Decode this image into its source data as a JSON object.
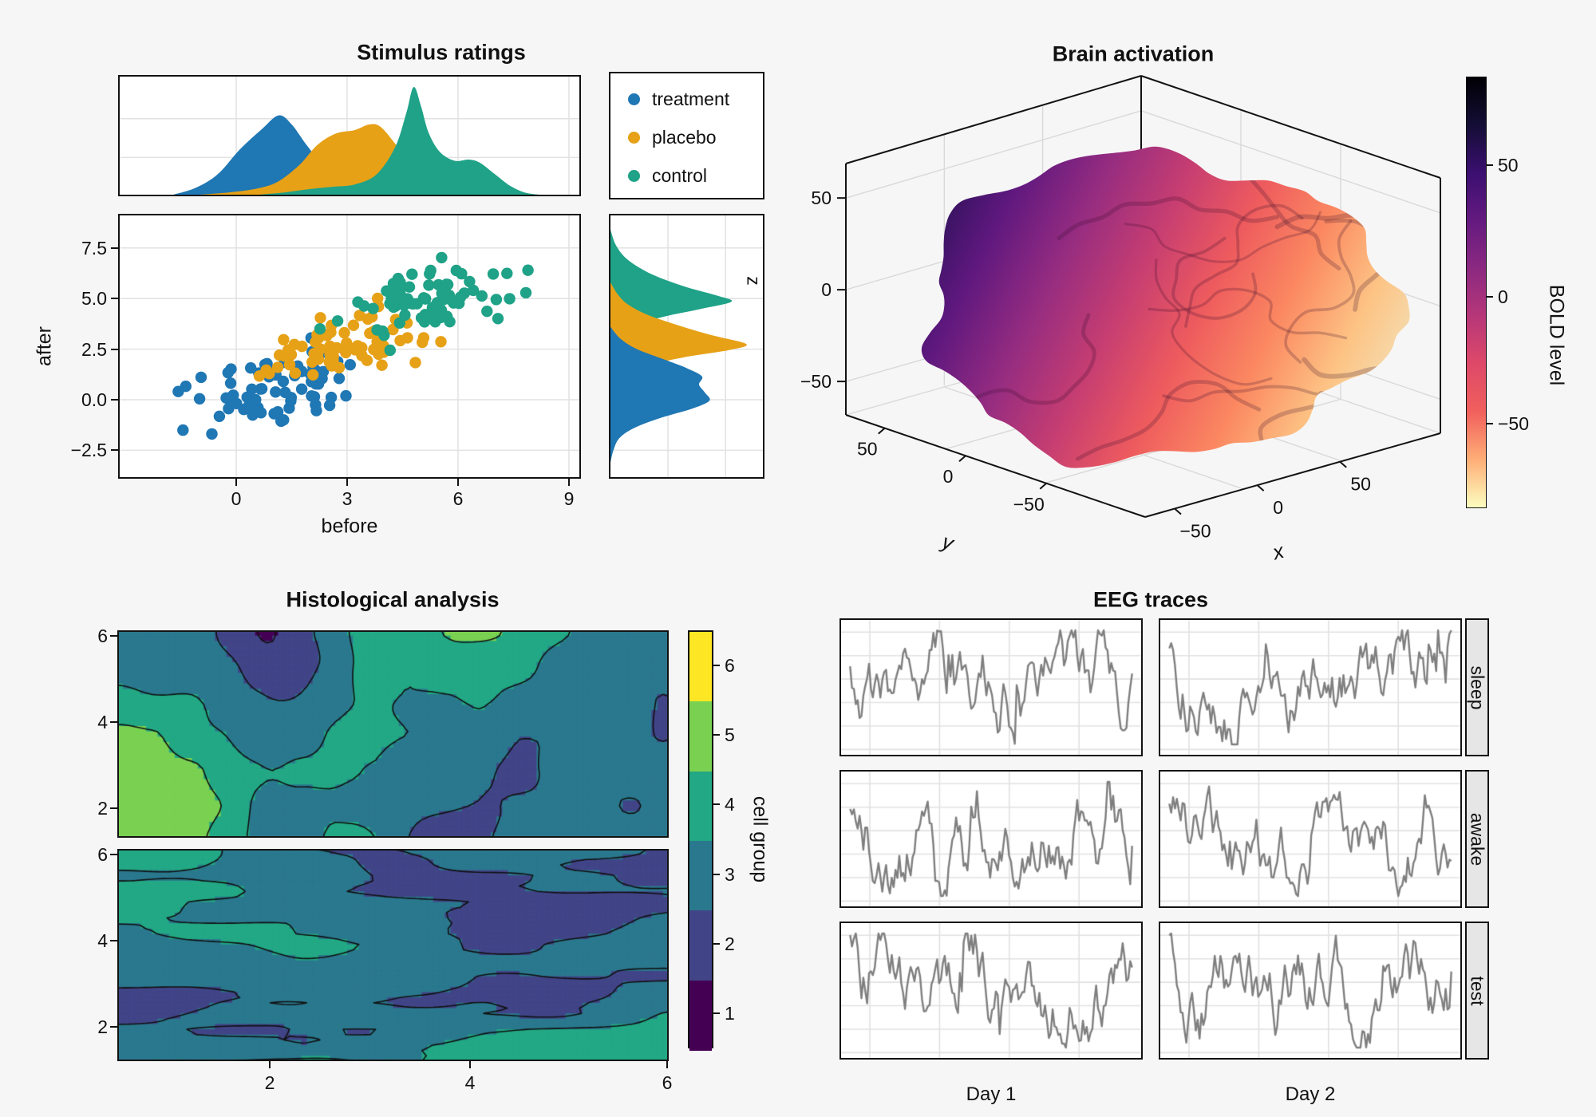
{
  "figure": {
    "bg": "#f6f6f6",
    "panel_bg": "#ffffff",
    "grid": "#e2e2e2",
    "frame": "#121212",
    "strip_bg": "#e6e6e6"
  },
  "chart_data": [
    {
      "id": "stimulus",
      "type": "scatter",
      "title": "Stimulus ratings",
      "xlabel": "before",
      "ylabel": "after",
      "marginal_axis_label": "z",
      "xlim": [
        -3.2,
        9.3
      ],
      "ylim": [
        -3.9,
        9.2
      ],
      "x_ticks": [
        "0",
        "3",
        "6",
        "9"
      ],
      "x_tick_values": [
        0,
        3,
        6,
        9
      ],
      "y_ticks": [
        "7.5",
        "5.0",
        "2.5",
        "0.0",
        "−2.5"
      ],
      "y_tick_values": [
        7.5,
        5.0,
        2.5,
        0.0,
        -2.5
      ],
      "grid_on": true,
      "legend_position": "top-right",
      "legend": [
        {
          "label": "treatment",
          "color": "#1f77b4"
        },
        {
          "label": "placebo",
          "color": "#e6a117"
        },
        {
          "label": "control",
          "color": "#1fa287"
        }
      ],
      "groups": [
        {
          "name": "treatment",
          "color": "#1f77b4",
          "n": 70,
          "mean": [
            1.0,
            0.55
          ],
          "sd": [
            1.15,
            0.95
          ],
          "corr": 0.45,
          "seed": 101
        },
        {
          "name": "placebo",
          "color": "#e6a117",
          "n": 70,
          "mean": [
            3.0,
            2.75
          ],
          "sd": [
            1.05,
            0.85
          ],
          "corr": 0.4,
          "seed": 202
        },
        {
          "name": "control",
          "color": "#1fa287",
          "n": 75,
          "mean": [
            5.3,
            5.05
          ],
          "sd": [
            1.1,
            0.9
          ],
          "corr": 0.35,
          "seed": 303
        }
      ],
      "density_top": [
        {
          "name": "treatment",
          "color": "#1f77b4",
          "pts": [
            [
              -1.7,
              0
            ],
            [
              -1.1,
              0.06
            ],
            [
              -0.5,
              0.18
            ],
            [
              0.1,
              0.4
            ],
            [
              0.7,
              0.58
            ],
            [
              1.15,
              0.7
            ],
            [
              1.5,
              0.62
            ],
            [
              1.9,
              0.44
            ],
            [
              2.3,
              0.28
            ],
            [
              2.7,
              0.15
            ],
            [
              3.1,
              0.07
            ],
            [
              3.6,
              0.03
            ],
            [
              4.2,
              0.01
            ],
            [
              4.8,
              0
            ]
          ]
        },
        {
          "name": "placebo",
          "color": "#e6a117",
          "pts": [
            [
              -1.0,
              0
            ],
            [
              -0.2,
              0.02
            ],
            [
              0.5,
              0.05
            ],
            [
              1.1,
              0.11
            ],
            [
              1.7,
              0.26
            ],
            [
              2.2,
              0.44
            ],
            [
              2.7,
              0.54
            ],
            [
              3.2,
              0.57
            ],
            [
              3.6,
              0.62
            ],
            [
              3.9,
              0.6
            ],
            [
              4.3,
              0.45
            ],
            [
              4.7,
              0.28
            ],
            [
              5.2,
              0.13
            ],
            [
              5.7,
              0.05
            ],
            [
              6.3,
              0
            ]
          ]
        },
        {
          "name": "control",
          "color": "#1fa287",
          "pts": [
            [
              0.6,
              0
            ],
            [
              1.3,
              0.02
            ],
            [
              2.0,
              0.05
            ],
            [
              2.6,
              0.07
            ],
            [
              3.2,
              0.09
            ],
            [
              3.8,
              0.18
            ],
            [
              4.3,
              0.42
            ],
            [
              4.6,
              0.72
            ],
            [
              4.8,
              0.95
            ],
            [
              5.0,
              0.78
            ],
            [
              5.2,
              0.55
            ],
            [
              5.5,
              0.38
            ],
            [
              5.9,
              0.3
            ],
            [
              6.3,
              0.31
            ],
            [
              6.6,
              0.28
            ],
            [
              7.0,
              0.18
            ],
            [
              7.4,
              0.08
            ],
            [
              7.8,
              0.02
            ],
            [
              8.2,
              0
            ]
          ]
        }
      ],
      "density_right": [
        {
          "name": "control",
          "color": "#1fa287",
          "pts": [
            [
              8.4,
              0
            ],
            [
              7.6,
              0.04
            ],
            [
              6.9,
              0.12
            ],
            [
              6.2,
              0.28
            ],
            [
              5.6,
              0.5
            ],
            [
              5.15,
              0.72
            ],
            [
              4.85,
              0.82
            ],
            [
              4.5,
              0.62
            ],
            [
              4.1,
              0.36
            ],
            [
              3.7,
              0.18
            ],
            [
              3.3,
              0.08
            ],
            [
              2.8,
              0.03
            ],
            [
              2.1,
              0.01
            ],
            [
              1.5,
              0
            ]
          ]
        },
        {
          "name": "placebo",
          "color": "#e6a117",
          "pts": [
            [
              5.8,
              0
            ],
            [
              5.2,
              0.05
            ],
            [
              4.7,
              0.12
            ],
            [
              4.2,
              0.25
            ],
            [
              3.7,
              0.45
            ],
            [
              3.2,
              0.68
            ],
            [
              2.75,
              0.92
            ],
            [
              2.45,
              0.8
            ],
            [
              2.1,
              0.5
            ],
            [
              1.7,
              0.26
            ],
            [
              1.2,
              0.1
            ],
            [
              0.6,
              0.03
            ],
            [
              -0.1,
              0
            ]
          ]
        },
        {
          "name": "treatment",
          "color": "#1f77b4",
          "pts": [
            [
              3.6,
              0
            ],
            [
              3.0,
              0.07
            ],
            [
              2.5,
              0.18
            ],
            [
              2.0,
              0.36
            ],
            [
              1.55,
              0.52
            ],
            [
              1.15,
              0.62
            ],
            [
              0.75,
              0.6
            ],
            [
              0.35,
              0.64
            ],
            [
              -0.05,
              0.67
            ],
            [
              -0.45,
              0.55
            ],
            [
              -0.9,
              0.34
            ],
            [
              -1.4,
              0.16
            ],
            [
              -1.9,
              0.06
            ],
            [
              -2.5,
              0.02
            ],
            [
              -3.1,
              0
            ]
          ]
        }
      ]
    },
    {
      "id": "brain",
      "type": "surface3d",
      "title": "Brain activation",
      "axis_labels": {
        "x": "x",
        "y": "y"
      },
      "x_ticks": [
        "−50",
        "0",
        "50"
      ],
      "y_ticks": [
        "50",
        "0",
        "−50"
      ],
      "z_ticks": [
        "50",
        "0",
        "−50"
      ],
      "colorbar": {
        "label": "BOLD level",
        "ticks": [
          "50",
          "0",
          "−50"
        ],
        "gradient_top_to_bottom": [
          "#000004",
          "#140e36",
          "#3b0f70",
          "#641a80",
          "#8c2981",
          "#b73779",
          "#de4968",
          "#f1605d",
          "#feae77",
          "#fcfdbf"
        ]
      },
      "brain_gradient": [
        "#241052",
        "#5f187f",
        "#982d80",
        "#c73e71",
        "#ee5b5e",
        "#fb8861",
        "#fdc384",
        "#f2e3bb"
      ],
      "seed": 9
    },
    {
      "id": "histology",
      "type": "contour",
      "title": "Histological analysis",
      "x_ticks": [
        "2",
        "4",
        "6"
      ],
      "x_tick_values": [
        2,
        4,
        6
      ],
      "y_ticks": [
        "6",
        "4",
        "2"
      ],
      "y_tick_values": [
        6,
        4,
        2
      ],
      "levels": [
        1.5,
        2.5,
        3.5,
        4.5,
        5.5
      ],
      "colorbar": {
        "label": "cell group",
        "ticks": [
          "6",
          "5",
          "4",
          "3",
          "2",
          "1"
        ],
        "colors_bottom_to_top": [
          "#440154",
          "#414487",
          "#2a788e",
          "#22a884",
          "#7ad151",
          "#fde725"
        ]
      },
      "panels": [
        {
          "orientation": "vertical-bands",
          "seed": 7
        },
        {
          "orientation": "horizontal-bands",
          "seed": 13
        }
      ]
    },
    {
      "id": "eeg",
      "type": "line",
      "title": "EEG traces",
      "line_color": "#7f7f7f",
      "row_labels": [
        "sleep",
        "awake",
        "test"
      ],
      "col_labels": [
        "Day 1",
        "Day 2"
      ],
      "traces": [
        {
          "row": "sleep",
          "col": "Day 1",
          "seed": 3
        },
        {
          "row": "sleep",
          "col": "Day 2",
          "seed": 8
        },
        {
          "row": "awake",
          "col": "Day 1",
          "seed": 15
        },
        {
          "row": "awake",
          "col": "Day 2",
          "seed": 21
        },
        {
          "row": "test",
          "col": "Day 1",
          "seed": 34
        },
        {
          "row": "test",
          "col": "Day 2",
          "seed": 55
        }
      ]
    }
  ]
}
